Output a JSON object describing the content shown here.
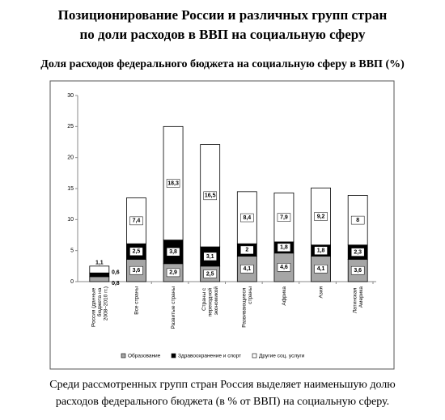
{
  "header": {
    "title_line1": "Позиционирование России и различных групп стран",
    "title_line2": "по доли расходов в ВВП на социальную сферу"
  },
  "chart_data": {
    "type": "stacked_bar",
    "title": "Доля расходов федерального бюджета на социальную сферу в ВВП (%)",
    "categories": [
      "Россия (данные бюджета на 2008–2010 гг.)",
      "Все страны",
      "Развитые страны",
      "Страны с переходной экономикой",
      "Развивающиеся страны",
      "Африка",
      "Азия",
      "Латинская Америка"
    ],
    "series": [
      {
        "name": "Образование",
        "color": "#a6a6a6",
        "values": [
          0.8,
          3.6,
          2.9,
          2.5,
          4.1,
          4.6,
          4.1,
          3.6
        ],
        "value_labels": [
          "0,8",
          "3,6",
          "2,9",
          "2,5",
          "4,1",
          "4,6",
          "4,1",
          "3,6"
        ]
      },
      {
        "name": "Здравоохранение и спорт",
        "color": "#000000",
        "values": [
          0.6,
          2.5,
          3.8,
          3.1,
          2,
          1.8,
          1.8,
          2.3
        ],
        "value_labels": [
          "0,6",
          "2,5",
          "3,8",
          "3,1",
          "2",
          "1,8",
          "1,8",
          "2,3"
        ]
      },
      {
        "name": "Другие соц. услуги",
        "color": "#ffffff",
        "values": [
          1.1,
          7.4,
          18.3,
          16.5,
          8.4,
          7.9,
          9.2,
          8
        ],
        "value_labels": [
          "1,1",
          "7,4",
          "18,3",
          "16,5",
          "8,4",
          "7,9",
          "9,2",
          "8"
        ]
      }
    ],
    "ylim": [
      0,
      30
    ],
    "yticks": [
      0,
      5,
      10,
      15,
      20,
      25,
      30
    ]
  },
  "footer": {
    "line1": "Среди рассмотренных групп стран Россия выделяет наименьшую долю",
    "line2": "расходов федерального бюджета (в % от ВВП) на социальную сферу."
  }
}
